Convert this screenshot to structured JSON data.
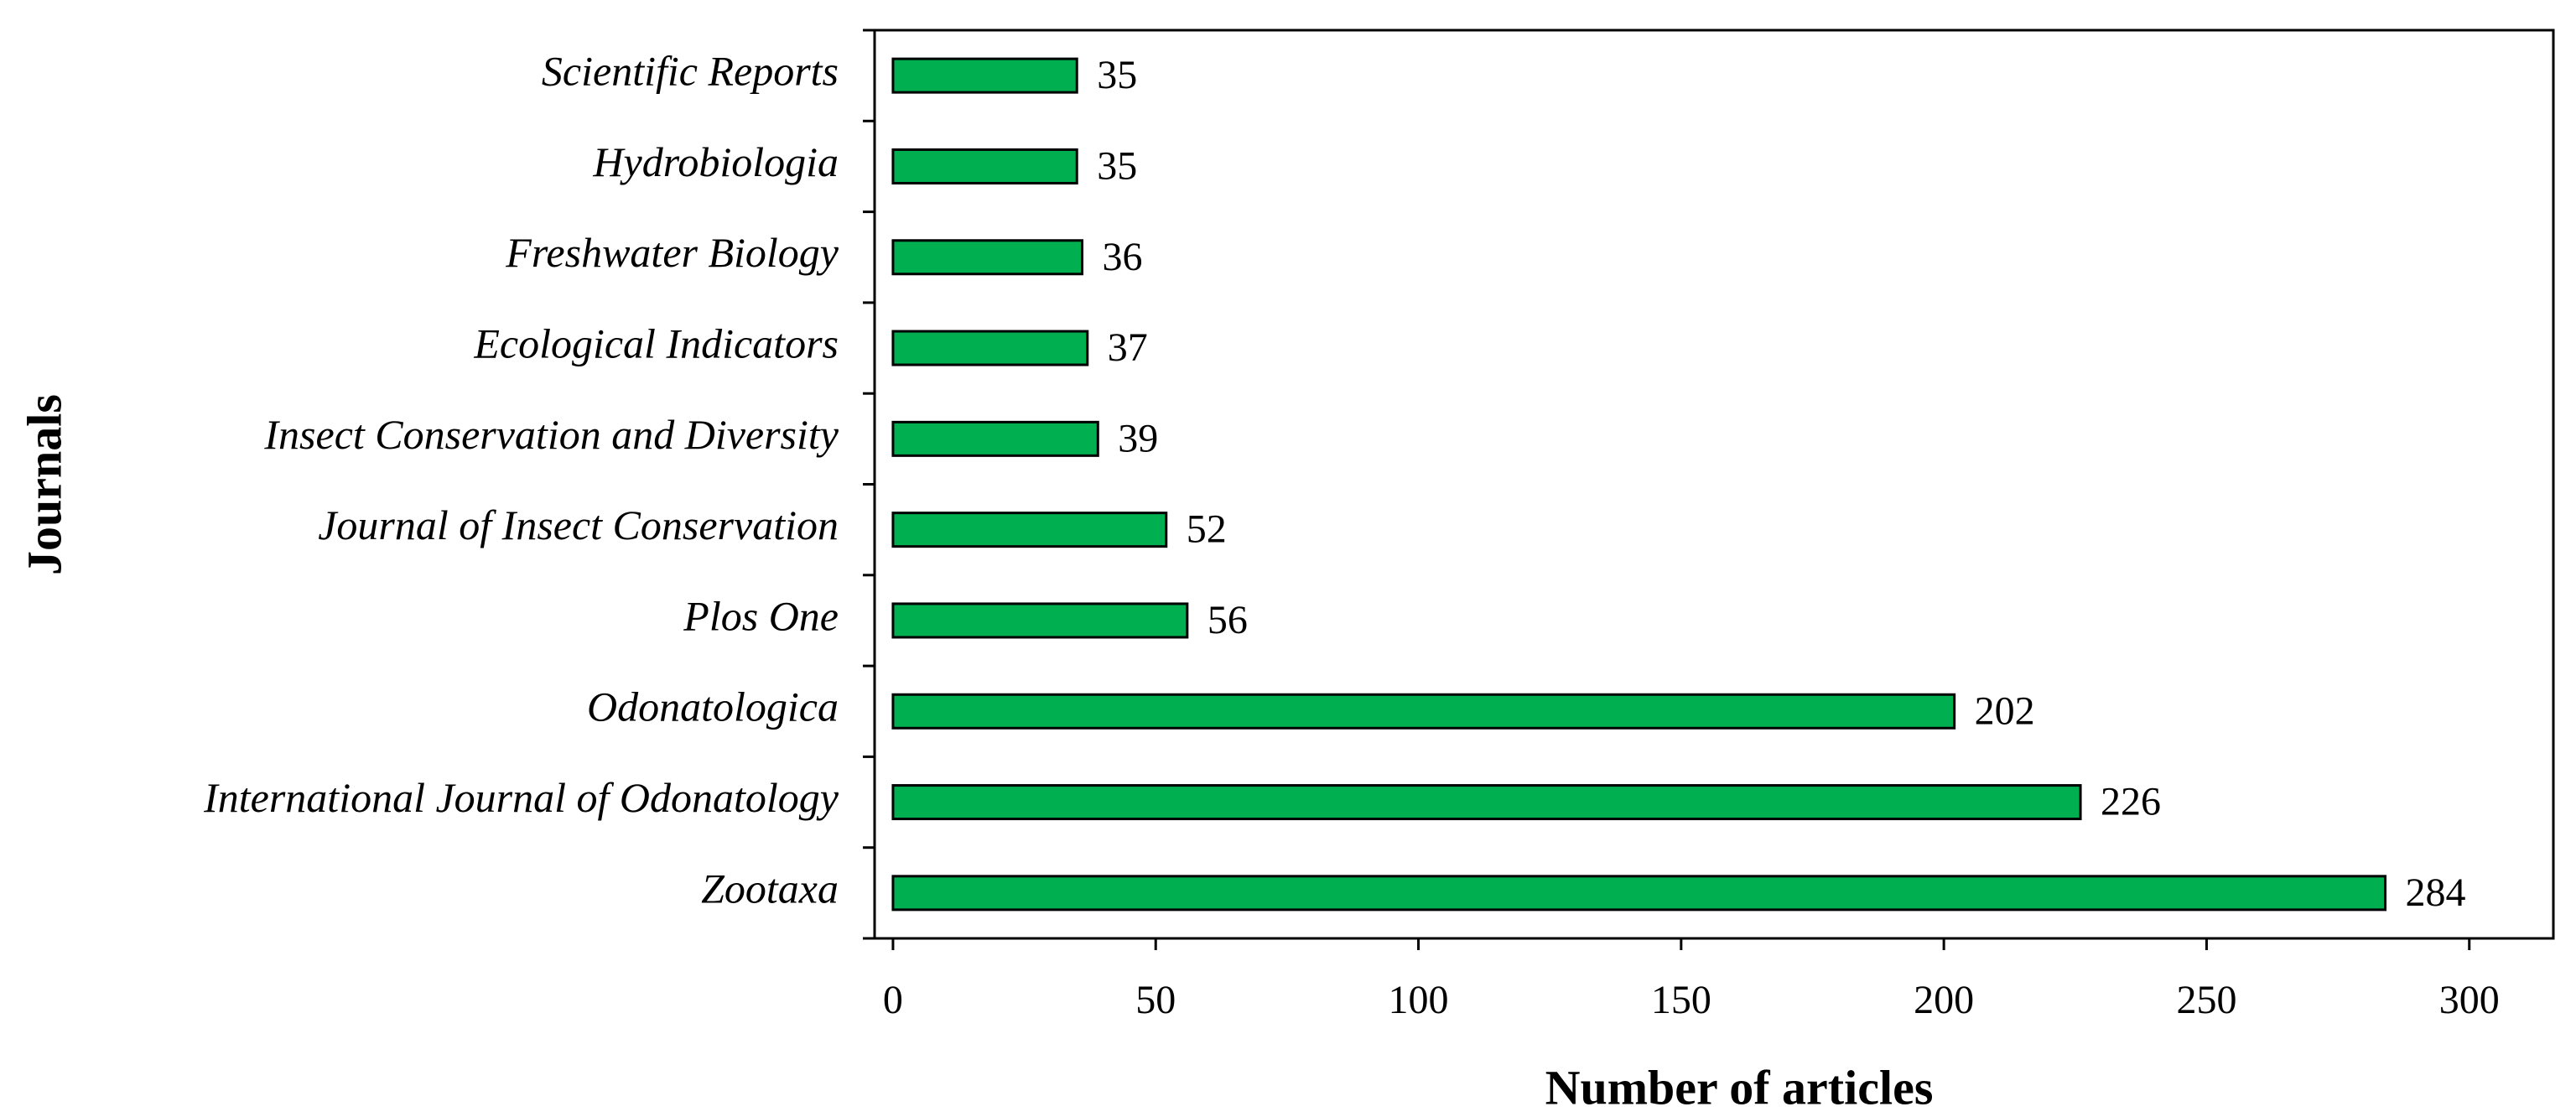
{
  "chart_data": {
    "type": "barh",
    "x_label": "Number of articles",
    "y_label": "Journals",
    "categories": [
      "Scientific Reports",
      "Hydrobiologia",
      "Freshwater Biology",
      "Ecological Indicators",
      "Insect Conservation and Diversity",
      "Journal of Insect Conservation",
      "Plos One",
      "Odonatologica",
      "International Journal of Odonatology",
      "Zootaxa"
    ],
    "values": [
      35,
      35,
      36,
      37,
      39,
      52,
      56,
      202,
      226,
      284
    ],
    "color": "#00b050",
    "xlim": [
      -3.5,
      316
    ],
    "xticks": [
      0,
      50,
      100,
      150,
      200,
      250,
      300
    ],
    "grid": false
  }
}
